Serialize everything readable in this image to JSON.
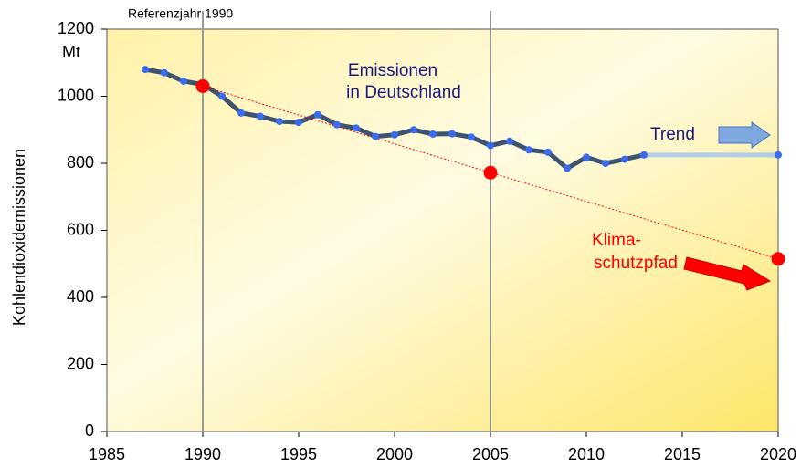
{
  "chart_data": {
    "type": "line",
    "xlim": [
      1985,
      2020
    ],
    "ylim": [
      0,
      1200
    ],
    "xticks": [
      1985,
      1990,
      1995,
      2000,
      2005,
      2010,
      2015,
      2020
    ],
    "yticks": [
      0,
      200,
      400,
      600,
      800,
      1000,
      1200
    ],
    "y_label": "Kohlendioxidemissionen",
    "y_unit": "Mt",
    "reference_lines": [
      1990,
      2005
    ],
    "annotations": [
      "Referenzjahr 1990",
      "Emissionen",
      "in Deutschland",
      "Trend",
      "Klima-",
      "schutzpfad"
    ],
    "series": [
      {
        "color": "#3d5470",
        "marker_color": "#3b6cf0",
        "x": [
          1987,
          1988,
          1989,
          1990,
          1991,
          1992,
          1993,
          1994,
          1995,
          1996,
          1997,
          1998,
          1999,
          2000,
          2001,
          2002,
          2003,
          2004,
          2005,
          2006,
          2007,
          2008,
          2009,
          2010,
          2011,
          2012,
          2013
        ],
        "values": [
          1080,
          1070,
          1045,
          1035,
          1000,
          950,
          940,
          925,
          922,
          945,
          915,
          905,
          880,
          885,
          900,
          887,
          888,
          878,
          853,
          866,
          840,
          833,
          785,
          818,
          800,
          812,
          825
        ]
      },
      {
        "color": "#b3cde6",
        "marker_color": "#3b6cf0",
        "x": [
          2013,
          2020
        ],
        "values": [
          825,
          825
        ]
      },
      {
        "color": "#ff0000",
        "marker_color": "#ff0000",
        "x": [
          1990,
          2005,
          2020
        ],
        "values": [
          1030,
          772,
          515
        ],
        "dashed": true
      }
    ]
  }
}
